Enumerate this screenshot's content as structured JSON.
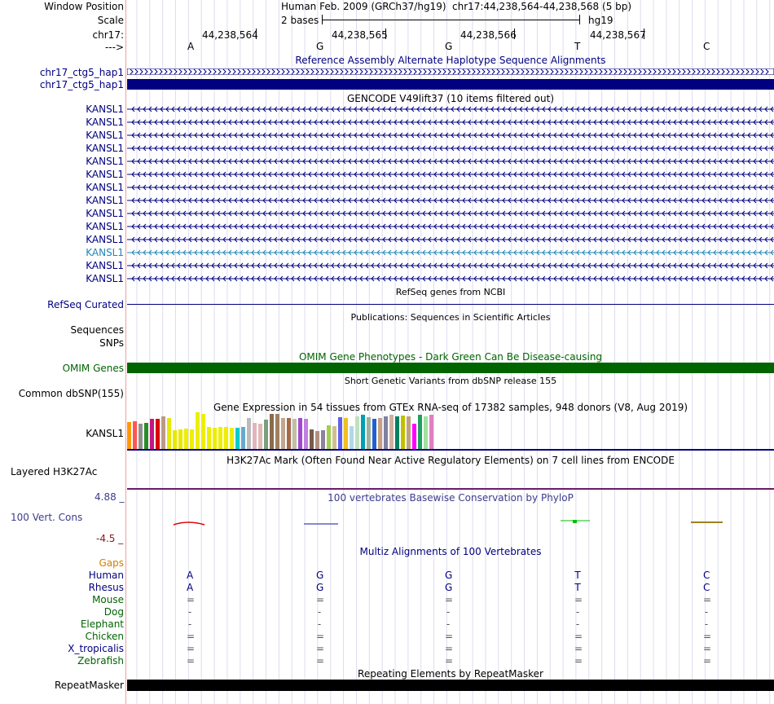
{
  "header": {
    "window_position_label": "Window Position",
    "assembly_title": "Human Feb. 2009 (GRCh37/hg19)",
    "position_range": "chr17:44,238,564-44,238,568 (5 bp)",
    "scale_label": "Scale",
    "scale_value": "2 bases",
    "scale_db": "hg19",
    "chrom_label": "chr17:",
    "coordinates": [
      "44,238,564",
      "44,238,565",
      "44,238,566",
      "44,238,567"
    ],
    "strand_label": "--->",
    "bases": [
      "A",
      "G",
      "G",
      "T",
      "C"
    ]
  },
  "tracks": {
    "haplotype": {
      "title": "Reference Assembly Alternate Haplotype Sequence Alignments",
      "items": [
        "chr17_ctg5_hap1",
        "chr17_ctg5_hap1"
      ]
    },
    "gencode": {
      "title": "GENCODE V49lift37 (10 items filtered out)",
      "items": [
        "KANSL1",
        "KANSL1",
        "KANSL1",
        "KANSL1",
        "KANSL1",
        "KANSL1",
        "KANSL1",
        "KANSL1",
        "KANSL1",
        "KANSL1",
        "KANSL1",
        "KANSL1",
        "KANSL1",
        "KANSL1"
      ]
    },
    "refseq": {
      "title": "RefSeq genes from NCBI",
      "label": "RefSeq Curated"
    },
    "publications": {
      "title": "Publications: Sequences in Scientific Articles",
      "label_seq": "Sequences",
      "label_snps": "SNPs"
    },
    "omim": {
      "title": "OMIM Gene Phenotypes - Dark Green Can Be Disease-causing",
      "label": "OMIM Genes"
    },
    "dbsnp": {
      "title": "Short Genetic Variants from dbSNP release 155",
      "label": "Common dbSNP(155)"
    },
    "gtex": {
      "title": "Gene Expression in 54 tissues from GTEx RNA-seq of 17382 samples, 948 donors (V8, Aug 2019)",
      "label": "KANSL1",
      "values": [
        32,
        33,
        30,
        31,
        35,
        35,
        38,
        36,
        22,
        23,
        24,
        23,
        43,
        41,
        26,
        25,
        26,
        26,
        25,
        25,
        26,
        36,
        31,
        30,
        34,
        41,
        41,
        36,
        36,
        35,
        36,
        35,
        23,
        21,
        22,
        28,
        27,
        37,
        36,
        27,
        38,
        40,
        37,
        35,
        36,
        38,
        40,
        38,
        39,
        38,
        30,
        40,
        38,
        40
      ],
      "colors": [
        "#FF9900",
        "#FF5555",
        "#909090",
        "#2A8C2A",
        "#C71585",
        "#DD0000",
        "#BC9A87",
        "#E8E800",
        "#E8E800",
        "#E8E800",
        "#EEEE00",
        "#EEEE00",
        "#EEEE00",
        "#EEEE00",
        "#EEEE00",
        "#EEEE00",
        "#EEEE00",
        "#EEEE00",
        "#EEEE00",
        "#00CCCC",
        "#66AACC",
        "#BBBBBB",
        "#E2B4BE",
        "#DFB9B3",
        "#7C9F7C",
        "#8B6B4A",
        "#A08060",
        "#C4A68E",
        "#A36A4A",
        "#C0C0A0",
        "#A04AD0",
        "#C080E0",
        "#7A5A4A",
        "#B09080",
        "#9080A0",
        "#A0D050",
        "#D0C090",
        "#6060F0",
        "#F0C020",
        "#B0D8E8",
        "#C0E0C0",
        "#00A0B0",
        "#A0B0A0",
        "#2060D0",
        "#C8A080",
        "#8080A0",
        "#D0B0A0",
        "#008060",
        "#C0C000",
        "#C0A080",
        "#FF00FF",
        "#20A060",
        "#A0E0A0",
        "#E080C0"
      ]
    },
    "h3k27ac": {
      "title": "H3K27Ac Mark (Often Found Near Active Regulatory Elements) on 7 cell lines from ENCODE",
      "label": "Layered H3K27Ac"
    },
    "phylop": {
      "title": "100 vertebrates Basewise Conservation by PhyloP",
      "label": "100 Vert. Cons",
      "max": "4.88 _",
      "min": "-4.5 _"
    },
    "multiz": {
      "title": "Multiz Alignments of 100 Vertebrates",
      "gaps_label": "Gaps",
      "species": [
        {
          "name": "Human",
          "bases": [
            "A",
            "G",
            "G",
            "T",
            "C"
          ],
          "color": "#000080"
        },
        {
          "name": "Rhesus",
          "bases": [
            "A",
            "G",
            "G",
            "T",
            "C"
          ],
          "color": "#000080"
        },
        {
          "name": "Mouse",
          "bases": [
            "=",
            "=",
            "=",
            "=",
            "="
          ],
          "color": "#006400"
        },
        {
          "name": "Dog",
          "bases": [
            "-",
            "-",
            "-",
            "-",
            "-"
          ],
          "color": "#006400"
        },
        {
          "name": "Elephant",
          "bases": [
            "-",
            "-",
            "-",
            "-",
            "-"
          ],
          "color": "#006400"
        },
        {
          "name": "Chicken",
          "bases": [
            "=",
            "=",
            "=",
            "=",
            "="
          ],
          "color": "#006400"
        },
        {
          "name": "X_tropicalis",
          "bases": [
            "=",
            "=",
            "=",
            "=",
            "="
          ],
          "color": "#000080"
        },
        {
          "name": "Zebrafish",
          "bases": [
            "=",
            "=",
            "=",
            "=",
            "="
          ],
          "color": "#006400"
        }
      ]
    },
    "repeatmasker": {
      "title": "Repeating Elements by RepeatMasker",
      "label": "RepeatMasker"
    }
  },
  "colors": {
    "navy": "#000080",
    "omim_green": "#006400",
    "gencode_highlight": "#1F86B7",
    "gap_orange": "#D08000"
  }
}
